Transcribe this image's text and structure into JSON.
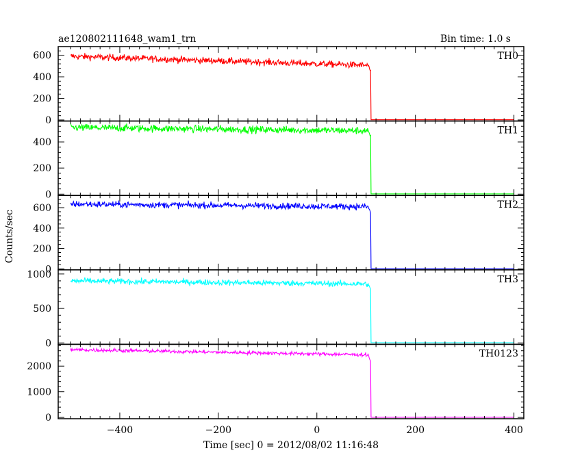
{
  "header": {
    "title": "ae120802111648_wam1_trn",
    "bin_time": "Bin time: 1.0 s"
  },
  "axes": {
    "ylabel": "Counts/sec",
    "xlabel": "Time [sec] 0 = 2012/08/02 11:16:48"
  },
  "chart_data": {
    "type": "line",
    "title": "ae120802111648_wam1_trn",
    "xlabel": "Time [sec] 0 = 2012/08/02 11:16:48",
    "ylabel": "Counts/sec",
    "xlim": [
      -525,
      420
    ],
    "x_ticks": [
      -400,
      -200,
      0,
      200,
      400
    ],
    "grid": false,
    "panels": [
      {
        "name": "TH0",
        "color": "#ff0000",
        "ylim": [
          -10,
          680
        ],
        "y_ticks": [
          0,
          200,
          400,
          600
        ],
        "level_start": 590,
        "level_end": 505,
        "noise": 22,
        "drop_time": 110,
        "post_level": 2
      },
      {
        "name": "TH1",
        "color": "#00ff00",
        "ylim": [
          -10,
          560
        ],
        "y_ticks": [
          0,
          200,
          400
        ],
        "level_start": 510,
        "level_end": 485,
        "noise": 20,
        "drop_time": 110,
        "post_level": 2
      },
      {
        "name": "TH2",
        "color": "#0000ff",
        "ylim": [
          -10,
          720
        ],
        "y_ticks": [
          0,
          200,
          400,
          600
        ],
        "level_start": 635,
        "level_end": 610,
        "noise": 22,
        "drop_time": 110,
        "post_level": 2
      },
      {
        "name": "TH3",
        "color": "#00ffff",
        "ylim": [
          -20,
          1060
        ],
        "y_ticks": [
          0,
          500,
          1000
        ],
        "level_start": 900,
        "level_end": 855,
        "noise": 30,
        "drop_time": 110,
        "post_level": 3
      },
      {
        "name": "TH0123",
        "color": "#ff00ff",
        "ylim": [
          -50,
          2850
        ],
        "y_ticks": [
          0,
          1000,
          2000
        ],
        "level_start": 2640,
        "level_end": 2440,
        "noise": 50,
        "drop_time": 110,
        "post_level": 5
      }
    ]
  }
}
